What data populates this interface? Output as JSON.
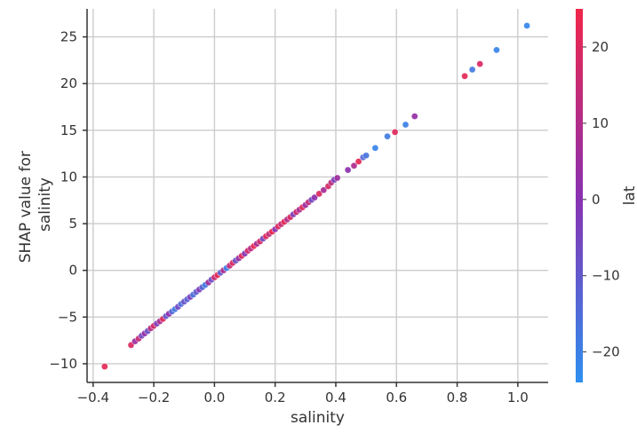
{
  "chart_data": {
    "type": "scatter",
    "title": "",
    "xlabel": "salinity",
    "ylabel_lines": [
      "SHAP value for",
      "salinity"
    ],
    "colorbar_label": "lat",
    "xlim": [
      -0.42,
      1.1
    ],
    "ylim": [
      -12,
      28
    ],
    "xticks": [
      -0.4,
      -0.2,
      0.0,
      0.2,
      0.4,
      0.6,
      0.8,
      1.0
    ],
    "xtick_labels": [
      "−0.4",
      "−0.2",
      "0.0",
      "0.2",
      "0.4",
      "0.6",
      "0.8",
      "1.0"
    ],
    "yticks": [
      -10,
      -5,
      0,
      5,
      10,
      15,
      20,
      25
    ],
    "ytick_labels": [
      "−10",
      "−5",
      "0",
      "5",
      "10",
      "15",
      "20",
      "25"
    ],
    "color_range": [
      -24,
      25
    ],
    "colorbar_ticks": [
      -20,
      -10,
      0,
      10,
      20
    ],
    "colorbar_tick_labels": [
      "−20",
      "−10",
      "0",
      "10",
      "20"
    ],
    "color_low": "#2d8ff0",
    "color_mid": "#8a30b0",
    "color_high": "#f0264a",
    "grid": true,
    "points": [
      {
        "x": -0.362,
        "y": -10.3,
        "c": 22
      },
      {
        "x": -0.275,
        "y": -8.0,
        "c": 20
      },
      {
        "x": -0.262,
        "y": -7.6,
        "c": 5
      },
      {
        "x": -0.25,
        "y": -7.3,
        "c": 15
      },
      {
        "x": -0.24,
        "y": -7.0,
        "c": -5
      },
      {
        "x": -0.23,
        "y": -6.75,
        "c": 3
      },
      {
        "x": -0.22,
        "y": -6.5,
        "c": -8
      },
      {
        "x": -0.21,
        "y": -6.2,
        "c": 12
      },
      {
        "x": -0.2,
        "y": -5.95,
        "c": 18
      },
      {
        "x": -0.19,
        "y": -5.7,
        "c": -3
      },
      {
        "x": -0.18,
        "y": -5.45,
        "c": 8
      },
      {
        "x": -0.17,
        "y": -5.2,
        "c": 20
      },
      {
        "x": -0.16,
        "y": -4.9,
        "c": -10
      },
      {
        "x": -0.15,
        "y": -4.65,
        "c": 2
      },
      {
        "x": -0.14,
        "y": -4.4,
        "c": -14
      },
      {
        "x": -0.13,
        "y": -4.15,
        "c": -18
      },
      {
        "x": -0.12,
        "y": -3.9,
        "c": -6
      },
      {
        "x": -0.11,
        "y": -3.6,
        "c": -15
      },
      {
        "x": -0.1,
        "y": -3.35,
        "c": -9
      },
      {
        "x": -0.09,
        "y": -3.1,
        "c": -12
      },
      {
        "x": -0.08,
        "y": -2.85,
        "c": -4
      },
      {
        "x": -0.07,
        "y": -2.6,
        "c": -16
      },
      {
        "x": -0.06,
        "y": -2.3,
        "c": -10
      },
      {
        "x": -0.05,
        "y": -2.05,
        "c": -2
      },
      {
        "x": -0.04,
        "y": -1.8,
        "c": -13
      },
      {
        "x": -0.03,
        "y": -1.55,
        "c": -19
      },
      {
        "x": -0.02,
        "y": -1.3,
        "c": 6
      },
      {
        "x": -0.01,
        "y": -1.0,
        "c": -7
      },
      {
        "x": 0.0,
        "y": -0.75,
        "c": 16
      },
      {
        "x": 0.01,
        "y": -0.5,
        "c": 22
      },
      {
        "x": 0.02,
        "y": -0.25,
        "c": -11
      },
      {
        "x": 0.03,
        "y": 0.0,
        "c": 9
      },
      {
        "x": 0.04,
        "y": 0.25,
        "c": -20
      },
      {
        "x": 0.05,
        "y": 0.5,
        "c": 14
      },
      {
        "x": 0.06,
        "y": 0.8,
        "c": 19
      },
      {
        "x": 0.07,
        "y": 1.05,
        "c": -8
      },
      {
        "x": 0.08,
        "y": 1.3,
        "c": 4
      },
      {
        "x": 0.09,
        "y": 1.55,
        "c": 21
      },
      {
        "x": 0.1,
        "y": 1.8,
        "c": -1
      },
      {
        "x": 0.11,
        "y": 2.1,
        "c": 17
      },
      {
        "x": 0.12,
        "y": 2.35,
        "c": 11
      },
      {
        "x": 0.13,
        "y": 2.6,
        "c": 23
      },
      {
        "x": 0.14,
        "y": 2.85,
        "c": 7
      },
      {
        "x": 0.15,
        "y": 3.1,
        "c": 18
      },
      {
        "x": 0.16,
        "y": 3.4,
        "c": -5
      },
      {
        "x": 0.17,
        "y": 3.65,
        "c": 21
      },
      {
        "x": 0.18,
        "y": 3.9,
        "c": 13
      },
      {
        "x": 0.19,
        "y": 4.15,
        "c": 24
      },
      {
        "x": 0.2,
        "y": 4.4,
        "c": 0
      },
      {
        "x": 0.21,
        "y": 4.7,
        "c": 20
      },
      {
        "x": 0.22,
        "y": 4.95,
        "c": 15
      },
      {
        "x": 0.23,
        "y": 5.2,
        "c": 22
      },
      {
        "x": 0.24,
        "y": 5.45,
        "c": 10
      },
      {
        "x": 0.25,
        "y": 5.7,
        "c": 19
      },
      {
        "x": 0.26,
        "y": 6.0,
        "c": -3
      },
      {
        "x": 0.27,
        "y": 6.25,
        "c": 16
      },
      {
        "x": 0.28,
        "y": 6.5,
        "c": 8
      },
      {
        "x": 0.29,
        "y": 6.75,
        "c": 21
      },
      {
        "x": 0.3,
        "y": 7.0,
        "c": 4
      },
      {
        "x": 0.31,
        "y": 7.3,
        "c": 14
      },
      {
        "x": 0.32,
        "y": 7.55,
        "c": -6
      },
      {
        "x": 0.33,
        "y": 7.8,
        "c": 2
      },
      {
        "x": 0.345,
        "y": 8.2,
        "c": 20
      },
      {
        "x": 0.36,
        "y": 8.6,
        "c": 7
      },
      {
        "x": 0.375,
        "y": 9.0,
        "c": 18
      },
      {
        "x": 0.385,
        "y": 9.4,
        "c": 12
      },
      {
        "x": 0.395,
        "y": 9.7,
        "c": -4
      },
      {
        "x": 0.405,
        "y": 9.9,
        "c": 5
      },
      {
        "x": 0.44,
        "y": 10.75,
        "c": 1
      },
      {
        "x": 0.46,
        "y": 11.2,
        "c": 9
      },
      {
        "x": 0.475,
        "y": 11.65,
        "c": 22
      },
      {
        "x": 0.49,
        "y": 12.1,
        "c": -14
      },
      {
        "x": 0.5,
        "y": 12.3,
        "c": -17
      },
      {
        "x": 0.53,
        "y": 13.1,
        "c": -21
      },
      {
        "x": 0.57,
        "y": 14.35,
        "c": -19
      },
      {
        "x": 0.595,
        "y": 14.8,
        "c": 21
      },
      {
        "x": 0.63,
        "y": 15.6,
        "c": -20
      },
      {
        "x": 0.66,
        "y": 16.5,
        "c": 3
      },
      {
        "x": 0.825,
        "y": 20.8,
        "c": 22
      },
      {
        "x": 0.85,
        "y": 21.5,
        "c": -18
      },
      {
        "x": 0.875,
        "y": 22.1,
        "c": 20
      },
      {
        "x": 0.93,
        "y": 23.6,
        "c": -21
      },
      {
        "x": 1.03,
        "y": 26.2,
        "c": -22
      }
    ]
  }
}
